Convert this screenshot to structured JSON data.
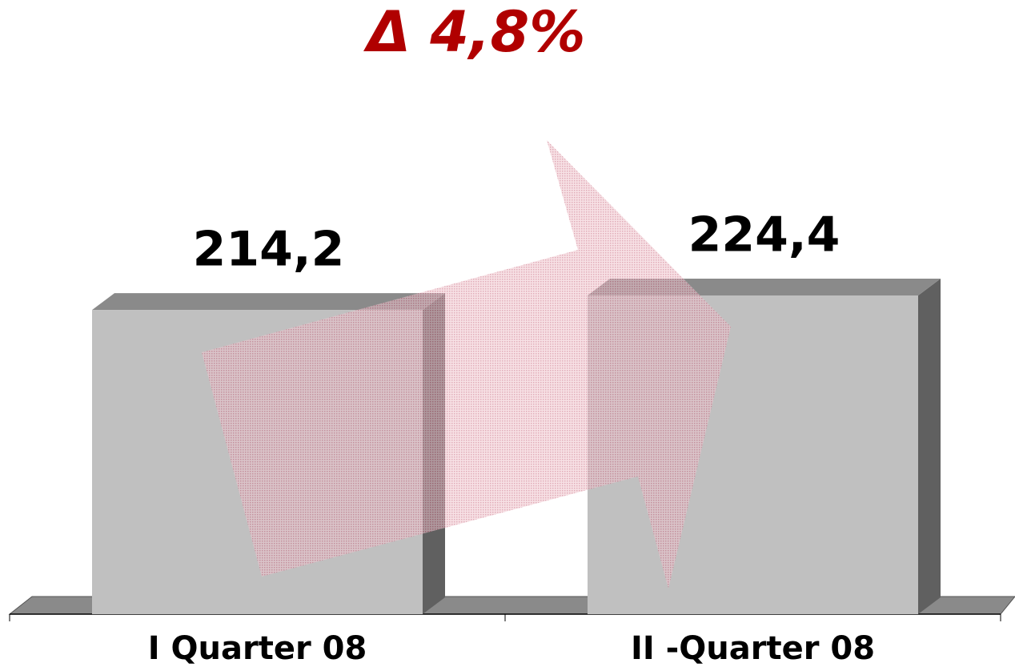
{
  "chart_data": {
    "type": "bar",
    "annotation": "Δ 4,8%",
    "categories": [
      "I Quarter 08",
      "II -Quarter 08"
    ],
    "values": [
      214.2,
      224.4
    ],
    "value_labels": [
      "214,2",
      "224,4"
    ],
    "color": "#c0c0c0"
  }
}
